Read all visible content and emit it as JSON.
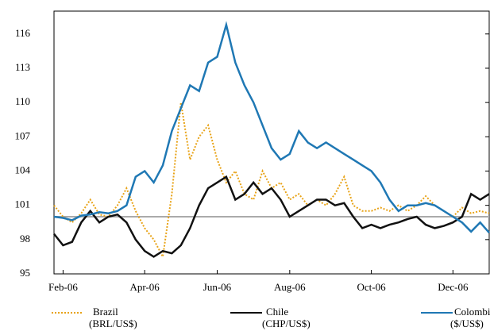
{
  "chart_data": {
    "type": "line",
    "categories": [
      null,
      "Feb-06",
      null,
      null,
      null,
      null,
      null,
      null,
      null,
      null,
      "Apr-06",
      null,
      null,
      null,
      null,
      null,
      null,
      null,
      "Jun-06",
      null,
      null,
      null,
      null,
      null,
      null,
      null,
      "Aug-06",
      null,
      null,
      null,
      null,
      null,
      null,
      null,
      null,
      "Oct-06",
      null,
      null,
      null,
      null,
      null,
      null,
      null,
      null,
      "Dec-06",
      null,
      null,
      null,
      null
    ],
    "series": [
      {
        "name": "Brazil",
        "name_line2": "(BRL/US$)",
        "color": "#e8a317",
        "dash": "2,2",
        "values": [
          101,
          100,
          99.5,
          100.3,
          101.5,
          100.2,
          100,
          101,
          102.5,
          100.5,
          99,
          98,
          96.5,
          102,
          110,
          105,
          107,
          108,
          105,
          103,
          104,
          102,
          101.5,
          104,
          102.5,
          103,
          101.5,
          102,
          101,
          101.5,
          101,
          102,
          103.5,
          101,
          100.5,
          100.5,
          100.8,
          100.5,
          101,
          100.5,
          101,
          101.8,
          101,
          100.5,
          100,
          100.8,
          100.3,
          100.5,
          100.3
        ]
      },
      {
        "name": "Chile",
        "name_line2": "(CHP/US$)",
        "color": "#111111",
        "dash": "",
        "values": [
          98.5,
          97.5,
          97.8,
          99.5,
          100.5,
          99.5,
          100,
          100.2,
          99.5,
          98,
          97,
          96.5,
          97,
          96.8,
          97.5,
          99,
          101,
          102.5,
          103,
          103.5,
          101.5,
          102,
          103,
          102,
          102.5,
          101.5,
          100,
          100.5,
          101,
          101.5,
          101.5,
          101,
          101.2,
          100,
          99,
          99.3,
          99,
          99.3,
          99.5,
          99.8,
          100,
          99.3,
          99,
          99.2,
          99.5,
          100,
          102,
          101.5,
          102
        ]
      },
      {
        "name": "Colombia",
        "name_line2": "($/US$)",
        "color": "#1f78b4",
        "dash": "",
        "values": [
          100,
          99.9,
          99.7,
          100.1,
          100.2,
          100.4,
          100.3,
          100.5,
          101,
          103.5,
          104,
          103,
          104.5,
          107.5,
          109.5,
          111.5,
          111,
          113.5,
          114,
          116.8,
          113.5,
          111.5,
          110,
          108,
          106,
          105,
          105.5,
          107.5,
          106.5,
          106,
          106.5,
          106,
          105.5,
          105,
          104.5,
          104,
          103,
          101.5,
          100.5,
          101,
          101,
          101.2,
          101,
          100.5,
          100,
          99.5,
          98.7,
          99.5,
          98.6
        ]
      }
    ],
    "ylim": [
      95,
      118
    ],
    "yticks": [
      95,
      98,
      101,
      104,
      107,
      110,
      113,
      116
    ],
    "reference_line": 100,
    "reference_color": "#aaaaaa"
  }
}
